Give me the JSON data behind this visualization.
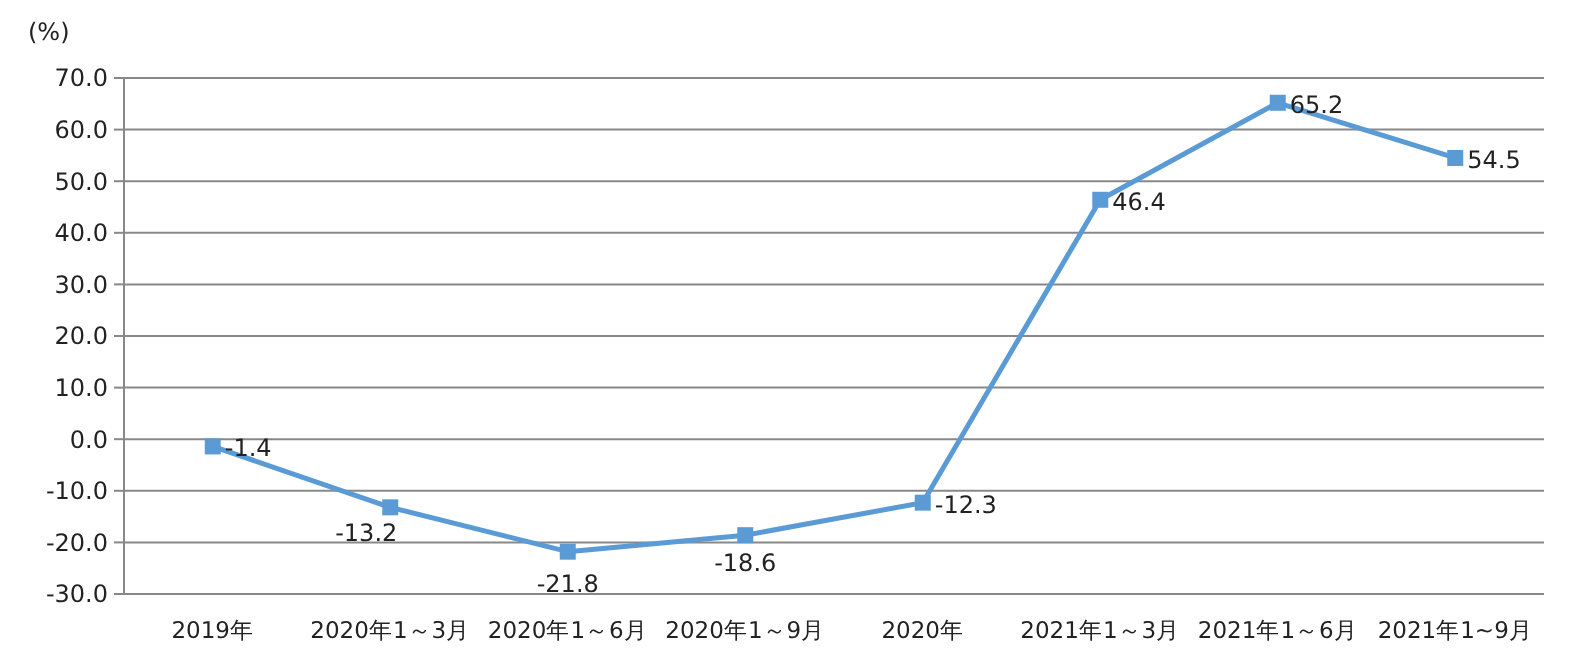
{
  "chart_data": {
    "type": "line",
    "ylabel": "(%)",
    "categories": [
      "2019年",
      "2020年1～3月",
      "2020年1～6月",
      "2020年1～9月",
      "2020年",
      "2021年1～3月",
      "2021年1～6月",
      "2021年1~9月"
    ],
    "series": [
      {
        "color": "#5b9bd5",
        "values": [
          -1.4,
          -13.2,
          -21.8,
          -18.6,
          -12.3,
          46.4,
          65.2,
          54.5
        ]
      }
    ],
    "ylim": [
      -30,
      70
    ],
    "yticks": [
      {
        "value": -30,
        "label": "-30.0"
      },
      {
        "value": -20,
        "label": "-20.0"
      },
      {
        "value": -10,
        "label": "-10.0"
      },
      {
        "value": 0,
        "label": "0.0"
      },
      {
        "value": 10,
        "label": "10.0"
      },
      {
        "value": 20,
        "label": "20.0"
      },
      {
        "value": 30,
        "label": "30.0"
      },
      {
        "value": 40,
        "label": "40.0"
      },
      {
        "value": 50,
        "label": "50.0"
      },
      {
        "value": 60,
        "label": "60.0"
      },
      {
        "value": 70,
        "label": "70.0"
      }
    ],
    "grid": "y",
    "marker": "square",
    "line_style": "solid",
    "data_labels": true
  }
}
